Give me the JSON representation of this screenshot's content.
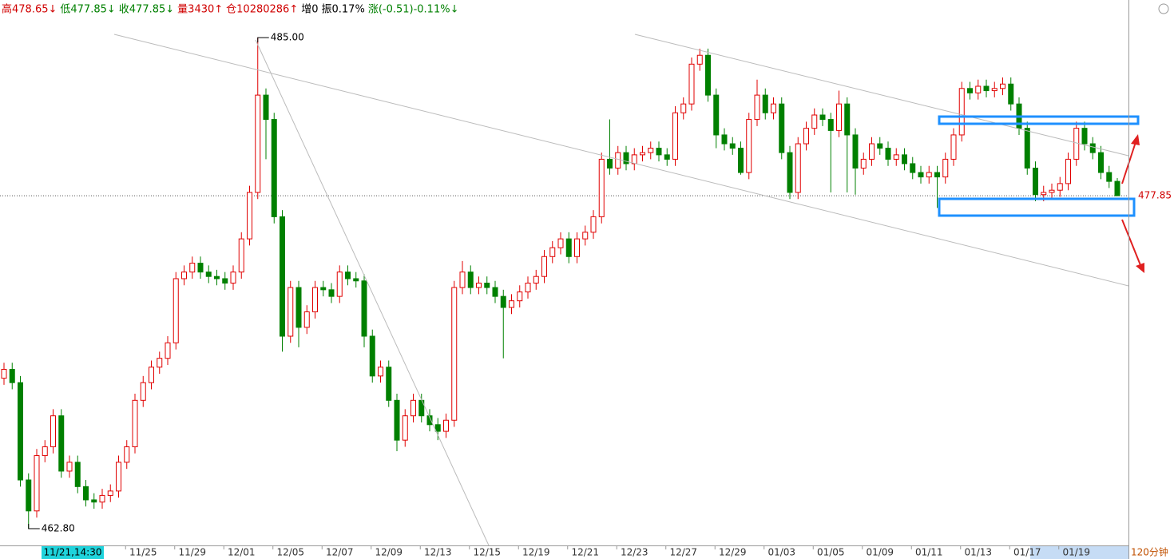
{
  "header": [
    {
      "text": "高478.65↓",
      "color": "#d00000"
    },
    {
      "text": "低477.85↓",
      "color": "#008000"
    },
    {
      "text": "收477.85↓",
      "color": "#008000"
    },
    {
      "text": "量3430↑",
      "color": "#d00000"
    },
    {
      "text": "仓10280286↑",
      "color": "#d00000"
    },
    {
      "text": "增0",
      "color": "#000000"
    },
    {
      "text": "振0.17%",
      "color": "#000000"
    },
    {
      "text": "涨(-0.51)-0.11%↓",
      "color": "#008000"
    }
  ],
  "chart_data": {
    "type": "candlestick",
    "period_label": "120分钟",
    "cursor_label": "11/21,14:30",
    "up_color": "#e00000",
    "down_color": "#008000",
    "ylim": [
      462.04,
      486.7
    ],
    "high_mark": {
      "value": 485,
      "label": "485.00"
    },
    "low_mark": {
      "value": 462.8,
      "label": "462.80"
    },
    "last_price": {
      "value": 477.85,
      "label": "477.85"
    },
    "categories": [
      null,
      null,
      null,
      null,
      null,
      null,
      null,
      null,
      null,
      null,
      null,
      null,
      null,
      null,
      null,
      null,
      null,
      "11/25",
      null,
      null,
      null,
      null,
      null,
      "11/29",
      null,
      null,
      null,
      null,
      null,
      "12/01",
      null,
      null,
      null,
      null,
      null,
      "12/05",
      null,
      null,
      null,
      null,
      null,
      "12/07",
      null,
      null,
      null,
      null,
      null,
      "12/09",
      null,
      null,
      null,
      null,
      null,
      "12/13",
      null,
      null,
      null,
      null,
      null,
      "12/15",
      null,
      null,
      null,
      null,
      null,
      "12/19",
      null,
      null,
      null,
      null,
      null,
      "12/21",
      null,
      null,
      null,
      null,
      null,
      "12/23",
      null,
      null,
      null,
      null,
      null,
      "12/27",
      null,
      null,
      null,
      null,
      null,
      "12/29",
      null,
      null,
      null,
      null,
      null,
      "01/03",
      null,
      null,
      null,
      null,
      null,
      "01/05",
      null,
      null,
      null,
      null,
      null,
      "01/09",
      null,
      null,
      null,
      null,
      null,
      "01/11",
      null,
      null,
      null,
      null,
      null,
      "01/13",
      null,
      null,
      null,
      null,
      null,
      "01/17",
      null,
      null,
      null,
      null,
      null,
      "01/19",
      null,
      null,
      null,
      null,
      null
    ],
    "open": [
      469.6,
      470.0,
      469.4,
      465.0,
      463.6,
      466.1,
      466.5,
      467.9,
      465.4,
      465.8,
      464.7,
      464.1,
      464.0,
      464.3,
      464.5,
      465.8,
      466.5,
      468.6,
      469.4,
      470.1,
      470.5,
      471.2,
      474.1,
      474.4,
      474.8,
      474.4,
      474.2,
      474.1,
      473.9,
      474.4,
      475.9,
      478.0,
      482.4,
      481.3,
      476.9,
      471.5,
      473.7,
      471.9,
      472.6,
      473.7,
      473.6,
      473.3,
      474.4,
      474.1,
      474.0,
      471.5,
      469.7,
      470.1,
      468.6,
      466.8,
      467.9,
      468.6,
      467.9,
      467.5,
      467.2,
      467.7,
      473.7,
      474.4,
      473.7,
      473.9,
      473.7,
      473.3,
      472.8,
      473.1,
      473.5,
      473.9,
      474.2,
      475.1,
      475.5,
      475.9,
      475.1,
      475.9,
      476.2,
      476.9,
      479.5,
      479.1,
      479.8,
      479.3,
      479.7,
      479.8,
      480.0,
      479.7,
      479.5,
      481.6,
      482.0,
      483.8,
      484.2,
      482.4,
      480.6,
      480.2,
      480.0,
      478.9,
      481.3,
      482.4,
      481.6,
      482.0,
      479.8,
      478.0,
      480.2,
      480.9,
      481.5,
      481.3,
      480.8,
      482.0,
      480.6,
      479.1,
      479.5,
      480.2,
      480.0,
      479.5,
      479.7,
      479.3,
      478.9,
      478.7,
      478.9,
      478.7,
      479.5,
      480.6,
      482.7,
      482.5,
      482.8,
      482.6,
      482.7,
      482.9,
      482.0,
      480.9,
      479.1,
      477.9,
      478.0,
      478.1,
      478.4,
      479.5,
      480.9,
      480.2,
      479.8,
      478.9,
      478.5
    ],
    "high": [
      470.3,
      470.3,
      469.7,
      465.3,
      466.4,
      466.8,
      468.2,
      468.2,
      466.1,
      466.1,
      465.0,
      464.4,
      464.6,
      464.8,
      466.1,
      466.8,
      468.9,
      469.7,
      470.4,
      470.8,
      471.5,
      474.4,
      474.7,
      475.1,
      475.1,
      474.7,
      474.5,
      474.4,
      474.7,
      476.2,
      478.3,
      485.0,
      482.7,
      481.6,
      477.2,
      474.0,
      474.0,
      472.9,
      474.0,
      474.0,
      473.9,
      474.7,
      474.7,
      474.4,
      474.3,
      471.8,
      470.4,
      470.4,
      468.9,
      468.2,
      468.9,
      468.9,
      468.2,
      467.8,
      468.0,
      474.0,
      474.9,
      474.7,
      474.2,
      474.2,
      474.0,
      473.6,
      473.4,
      473.8,
      474.2,
      474.5,
      475.4,
      475.8,
      476.2,
      476.2,
      476.2,
      476.5,
      477.2,
      479.8,
      481.3,
      480.1,
      480.1,
      480.0,
      480.1,
      480.3,
      480.3,
      480.0,
      481.9,
      482.3,
      484.1,
      484.5,
      484.5,
      482.7,
      480.9,
      480.5,
      480.3,
      481.6,
      483.1,
      482.7,
      482.3,
      482.3,
      480.1,
      480.5,
      481.2,
      481.8,
      481.8,
      481.6,
      482.6,
      482.3,
      480.9,
      479.8,
      480.5,
      480.5,
      480.3,
      480.0,
      480.0,
      479.6,
      479.2,
      479.2,
      479.2,
      479.8,
      480.9,
      483.0,
      483.0,
      483.1,
      483.1,
      483.0,
      483.2,
      483.2,
      482.3,
      481.2,
      479.4,
      478.3,
      478.4,
      478.7,
      479.8,
      481.2,
      481.2,
      480.5,
      480.1,
      479.2,
      478.65
    ],
    "low": [
      469.3,
      469.1,
      464.7,
      462.8,
      463.3,
      465.8,
      466.2,
      465.1,
      465.1,
      464.4,
      463.8,
      463.7,
      463.7,
      464.0,
      464.2,
      465.5,
      466.2,
      468.3,
      469.1,
      469.8,
      470.2,
      470.9,
      473.8,
      474.1,
      474.1,
      473.9,
      473.8,
      473.6,
      473.6,
      474.1,
      475.6,
      477.7,
      479.5,
      476.6,
      470.8,
      471.2,
      471.0,
      471.6,
      472.3,
      473.3,
      473.0,
      473.0,
      473.8,
      473.7,
      471.0,
      469.4,
      469.4,
      468.3,
      466.3,
      466.5,
      467.6,
      467.6,
      467.2,
      466.8,
      466.9,
      467.4,
      473.4,
      473.4,
      473.4,
      473.4,
      473.0,
      470.5,
      472.5,
      472.8,
      473.2,
      473.6,
      473.9,
      474.8,
      475.2,
      474.8,
      474.8,
      475.6,
      475.9,
      476.6,
      478.8,
      478.8,
      479.0,
      479.0,
      479.4,
      479.5,
      479.4,
      479.2,
      479.2,
      481.3,
      481.7,
      483.5,
      482.1,
      480.0,
      479.9,
      479.7,
      478.8,
      478.6,
      481.0,
      481.3,
      481.3,
      479.5,
      477.7,
      477.7,
      479.9,
      480.6,
      481.0,
      478.0,
      480.5,
      478.0,
      477.9,
      478.8,
      479.2,
      479.7,
      479.2,
      479.2,
      479.0,
      478.6,
      478.4,
      478.4,
      477.3,
      478.4,
      479.2,
      480.3,
      482.2,
      482.2,
      482.3,
      482.3,
      482.4,
      481.7,
      480.6,
      478.8,
      477.6,
      477.6,
      477.7,
      477.8,
      478.1,
      479.2,
      479.9,
      479.5,
      478.6,
      478.2,
      477.85
    ],
    "close": [
      470.0,
      469.4,
      465.0,
      463.6,
      466.1,
      466.5,
      467.9,
      465.4,
      465.8,
      464.7,
      464.1,
      464.0,
      464.3,
      464.5,
      465.8,
      466.5,
      468.6,
      469.4,
      470.1,
      470.5,
      471.2,
      474.1,
      474.4,
      474.8,
      474.4,
      474.2,
      474.1,
      473.9,
      474.4,
      475.9,
      478.0,
      482.4,
      481.3,
      476.9,
      471.5,
      473.7,
      471.9,
      472.6,
      473.7,
      473.6,
      473.3,
      474.4,
      474.1,
      474.0,
      471.5,
      469.7,
      470.1,
      468.6,
      466.8,
      467.9,
      468.6,
      467.9,
      467.5,
      467.2,
      467.7,
      473.7,
      474.4,
      473.7,
      473.9,
      473.7,
      473.3,
      472.8,
      473.1,
      473.5,
      473.9,
      474.2,
      475.1,
      475.5,
      475.9,
      475.1,
      475.9,
      476.2,
      476.9,
      479.5,
      479.1,
      479.8,
      479.3,
      479.7,
      479.8,
      480.0,
      479.7,
      479.5,
      481.6,
      482.0,
      483.8,
      484.2,
      482.4,
      480.6,
      480.2,
      480.0,
      478.9,
      481.3,
      482.4,
      481.6,
      482.0,
      479.8,
      478.0,
      480.2,
      480.9,
      481.5,
      481.3,
      480.8,
      482.0,
      480.6,
      479.1,
      479.5,
      480.2,
      480.0,
      479.5,
      479.7,
      479.3,
      478.9,
      478.7,
      478.9,
      478.7,
      479.5,
      480.6,
      482.7,
      482.5,
      482.8,
      482.6,
      482.7,
      482.9,
      482.0,
      480.9,
      479.1,
      477.9,
      478.0,
      478.1,
      478.4,
      479.5,
      480.9,
      480.2,
      479.8,
      478.9,
      478.5,
      477.85
    ]
  }
}
